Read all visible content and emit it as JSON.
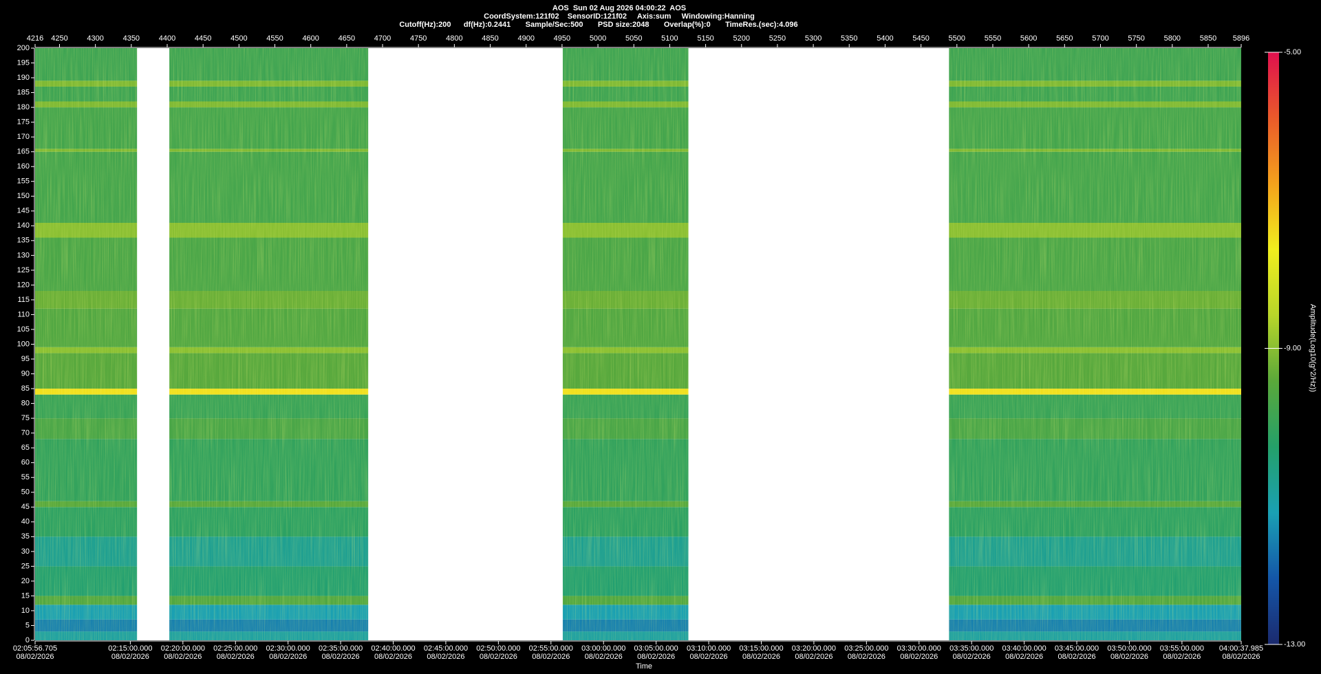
{
  "header": {
    "title": "AOS  Sun 02 Aug 2026 04:00:22  AOS",
    "line2": "CoordSystem:121f02    SensorID:121f02     Axis:sum     Windowing:Hanning",
    "line3": "Cutoff(Hz):200      df(Hz):0.2441       Sample/Sec:500       PSD size:2048       Overlap(%):0       TimeRes.(sec):4.096"
  },
  "chart_data": {
    "type": "spectrogram",
    "xlabel": "Time",
    "colorbar_label": "Amplitude(Log10(g^2/Hz))",
    "ylim": [
      0,
      200
    ],
    "yticks": [
      0,
      5,
      10,
      15,
      20,
      25,
      30,
      35,
      40,
      45,
      50,
      55,
      60,
      65,
      70,
      75,
      80,
      85,
      90,
      95,
      100,
      105,
      110,
      115,
      120,
      125,
      130,
      135,
      140,
      145,
      150,
      155,
      160,
      165,
      170,
      175,
      180,
      185,
      190,
      195,
      200
    ],
    "x2lim": [
      4216,
      5896
    ],
    "x2ticks": [
      4216,
      4250,
      4300,
      4350,
      4400,
      4450,
      4500,
      4550,
      4600,
      4650,
      4700,
      4750,
      4800,
      4850,
      4900,
      4950,
      5000,
      5050,
      5100,
      5150,
      5200,
      5250,
      5300,
      5350,
      5400,
      5450,
      5500,
      5550,
      5600,
      5650,
      5700,
      5750,
      5800,
      5850,
      5896
    ],
    "xlim": [
      7556.705,
      14437.985
    ],
    "xticks": [
      {
        "value": 7556.705,
        "label": "02:05:56.705",
        "date": "08/02/2026"
      },
      {
        "value": 8100,
        "label": "02:15:00.000",
        "date": "08/02/2026"
      },
      {
        "value": 8400,
        "label": "02:20:00.000",
        "date": "08/02/2026"
      },
      {
        "value": 8700,
        "label": "02:25:00.000",
        "date": "08/02/2026"
      },
      {
        "value": 9000,
        "label": "02:30:00.000",
        "date": "08/02/2026"
      },
      {
        "value": 9300,
        "label": "02:35:00.000",
        "date": "08/02/2026"
      },
      {
        "value": 9600,
        "label": "02:40:00.000",
        "date": "08/02/2026"
      },
      {
        "value": 9900,
        "label": "02:45:00.000",
        "date": "08/02/2026"
      },
      {
        "value": 10200,
        "label": "02:50:00.000",
        "date": "08/02/2026"
      },
      {
        "value": 10500,
        "label": "02:55:00.000",
        "date": "08/02/2026"
      },
      {
        "value": 10800,
        "label": "03:00:00.000",
        "date": "08/02/2026"
      },
      {
        "value": 11100,
        "label": "03:05:00.000",
        "date": "08/02/2026"
      },
      {
        "value": 11400,
        "label": "03:10:00.000",
        "date": "08/02/2026"
      },
      {
        "value": 11700,
        "label": "03:15:00.000",
        "date": "08/02/2026"
      },
      {
        "value": 12000,
        "label": "03:20:00.000",
        "date": "08/02/2026"
      },
      {
        "value": 12300,
        "label": "03:25:00.000",
        "date": "08/02/2026"
      },
      {
        "value": 12600,
        "label": "03:30:00.000",
        "date": "08/02/2026"
      },
      {
        "value": 12900,
        "label": "03:35:00.000",
        "date": "08/02/2026"
      },
      {
        "value": 13200,
        "label": "03:40:00.000",
        "date": "08/02/2026"
      },
      {
        "value": 13500,
        "label": "03:45:00.000",
        "date": "08/02/2026"
      },
      {
        "value": 13800,
        "label": "03:50:00.000",
        "date": "08/02/2026"
      },
      {
        "value": 14100,
        "label": "03:55:00.000",
        "date": "08/02/2026"
      },
      {
        "value": 14437.985,
        "label": "04:00:37.985",
        "date": "08/02/2026"
      }
    ],
    "clim": [
      -13,
      -5
    ],
    "cticks": [
      {
        "value": -13,
        "label": "-13.00"
      },
      {
        "value": -9,
        "label": "-9.00"
      },
      {
        "value": -5,
        "label": "-5.00"
      }
    ],
    "colormap": [
      "#1b2a6e",
      "#1456a8",
      "#1aa0b4",
      "#24a06a",
      "#5aa83a",
      "#b8d52a",
      "#f0ee1e",
      "#f4a21c",
      "#ea5a2a",
      "#e0104e"
    ],
    "segments": [
      {
        "start": 4216,
        "end": 4358
      },
      {
        "start": 4403,
        "end": 4680
      },
      {
        "start": 4951,
        "end": 5126
      },
      {
        "start": 5489,
        "end": 5896
      }
    ],
    "bands": [
      {
        "from": 0,
        "to": 3,
        "value": -11.0
      },
      {
        "from": 3,
        "to": 7,
        "value": -11.6
      },
      {
        "from": 7,
        "to": 12,
        "value": -11.2
      },
      {
        "from": 12,
        "to": 15,
        "value": -9.6
      },
      {
        "from": 15,
        "to": 25,
        "value": -10.4
      },
      {
        "from": 25,
        "to": 35,
        "value": -10.8
      },
      {
        "from": 35,
        "to": 45,
        "value": -10.2
      },
      {
        "from": 45,
        "to": 47,
        "value": -9.5
      },
      {
        "from": 47,
        "to": 68,
        "value": -10.1
      },
      {
        "from": 68,
        "to": 75,
        "value": -9.7
      },
      {
        "from": 75,
        "to": 83,
        "value": -10.0
      },
      {
        "from": 83,
        "to": 85,
        "value": -7.5
      },
      {
        "from": 85,
        "to": 97,
        "value": -9.5
      },
      {
        "from": 97,
        "to": 99,
        "value": -9.0
      },
      {
        "from": 99,
        "to": 112,
        "value": -9.6
      },
      {
        "from": 112,
        "to": 118,
        "value": -9.3
      },
      {
        "from": 118,
        "to": 136,
        "value": -9.7
      },
      {
        "from": 136,
        "to": 141,
        "value": -9.0
      },
      {
        "from": 141,
        "to": 165,
        "value": -9.8
      },
      {
        "from": 165,
        "to": 166,
        "value": -9.1
      },
      {
        "from": 166,
        "to": 180,
        "value": -9.8
      },
      {
        "from": 180,
        "to": 182,
        "value": -9.1
      },
      {
        "from": 182,
        "to": 187,
        "value": -9.9
      },
      {
        "from": 187,
        "to": 189,
        "value": -9.1
      },
      {
        "from": 189,
        "to": 200,
        "value": -9.9
      }
    ]
  }
}
